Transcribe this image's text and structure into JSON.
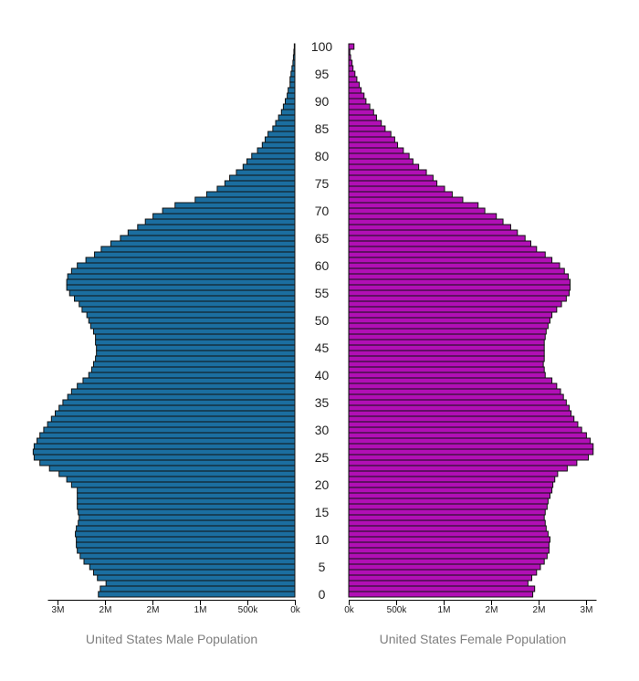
{
  "chart_data": {
    "type": "bar",
    "orientation": "horizontal",
    "layout": "population-pyramid",
    "age_labels": [
      "0",
      "5",
      "10",
      "15",
      "20",
      "25",
      "30",
      "35",
      "40",
      "45",
      "50",
      "55",
      "60",
      "65",
      "70",
      "75",
      "80",
      "85",
      "90",
      "95",
      "100"
    ],
    "male": {
      "name": "United States Male Population",
      "color": "#1b6ea0",
      "xlabel": "United States Male Population",
      "ticks": [
        "3M",
        "2M",
        "2M",
        "1M",
        "500k",
        "0k"
      ],
      "values": [
        2.05,
        2.03,
        1.97,
        2.06,
        2.1,
        2.14,
        2.2,
        2.24,
        2.27,
        2.28,
        2.28,
        2.29,
        2.28,
        2.26,
        2.25,
        2.26,
        2.27,
        2.27,
        2.27,
        2.27,
        2.33,
        2.38,
        2.46,
        2.56,
        2.66,
        2.72,
        2.73,
        2.72,
        2.69,
        2.66,
        2.62,
        2.58,
        2.54,
        2.5,
        2.46,
        2.42,
        2.37,
        2.33,
        2.27,
        2.21,
        2.15,
        2.12,
        2.1,
        2.08,
        2.07,
        2.07,
        2.08,
        2.08,
        2.1,
        2.13,
        2.15,
        2.17,
        2.22,
        2.25,
        2.3,
        2.35,
        2.38,
        2.38,
        2.37,
        2.33,
        2.27,
        2.18,
        2.09,
        2.02,
        1.92,
        1.82,
        1.74,
        1.64,
        1.56,
        1.48,
        1.38,
        1.25,
        1.04,
        0.92,
        0.81,
        0.73,
        0.68,
        0.61,
        0.54,
        0.5,
        0.45,
        0.39,
        0.34,
        0.31,
        0.28,
        0.23,
        0.2,
        0.17,
        0.14,
        0.12,
        0.1,
        0.08,
        0.07,
        0.05,
        0.05,
        0.04,
        0.03,
        0.02,
        0.015,
        0.01,
        0.006
      ]
    },
    "female": {
      "name": "United States Female Population",
      "color": "#b10fb5",
      "xlabel": "United States Female Population",
      "ticks": [
        "0k",
        "500k",
        "1M",
        "2M",
        "2M",
        "3M"
      ],
      "values": [
        1.92,
        1.94,
        1.87,
        1.91,
        1.96,
        2.0,
        2.04,
        2.07,
        2.09,
        2.09,
        2.1,
        2.08,
        2.06,
        2.05,
        2.04,
        2.05,
        2.07,
        2.08,
        2.1,
        2.12,
        2.13,
        2.15,
        2.18,
        2.28,
        2.38,
        2.5,
        2.55,
        2.55,
        2.52,
        2.48,
        2.43,
        2.39,
        2.35,
        2.32,
        2.3,
        2.27,
        2.24,
        2.21,
        2.17,
        2.12,
        2.05,
        2.04,
        2.03,
        2.04,
        2.04,
        2.04,
        2.04,
        2.05,
        2.06,
        2.08,
        2.1,
        2.12,
        2.17,
        2.22,
        2.27,
        2.3,
        2.31,
        2.31,
        2.29,
        2.25,
        2.2,
        2.12,
        2.05,
        1.96,
        1.9,
        1.84,
        1.76,
        1.69,
        1.61,
        1.54,
        1.42,
        1.35,
        1.19,
        1.08,
        1.0,
        0.92,
        0.88,
        0.81,
        0.73,
        0.67,
        0.63,
        0.57,
        0.51,
        0.48,
        0.44,
        0.38,
        0.34,
        0.29,
        0.26,
        0.22,
        0.18,
        0.16,
        0.13,
        0.11,
        0.085,
        0.065,
        0.045,
        0.035,
        0.02,
        0.012,
        0.055
      ]
    }
  }
}
